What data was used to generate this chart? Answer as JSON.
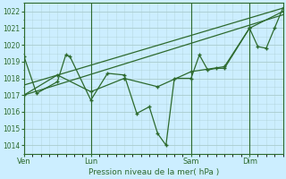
{
  "xlabel": "Pression niveau de la mer( hPa )",
  "bg_color": "#cceeff",
  "line_color": "#2d6a2d",
  "grid_color": "#aacccc",
  "ylim": [
    1013.5,
    1022.5
  ],
  "yticks": [
    1014,
    1015,
    1016,
    1017,
    1018,
    1019,
    1020,
    1021,
    1022
  ],
  "day_labels": [
    "Ven",
    "Lun",
    "Sam",
    "Dim"
  ],
  "day_positions": [
    0,
    8,
    20,
    27
  ],
  "xlim": [
    0,
    31
  ],
  "series1_x": [
    0,
    1.5,
    4,
    5,
    5.5,
    8,
    10,
    12,
    13.5,
    15,
    16,
    17,
    18,
    20,
    21,
    22,
    23,
    24,
    27,
    28,
    29,
    30,
    31
  ],
  "series1_y": [
    1019.3,
    1017.1,
    1017.8,
    1019.4,
    1019.3,
    1016.7,
    1018.3,
    1018.2,
    1015.9,
    1016.3,
    1014.7,
    1014.0,
    1018.0,
    1018.0,
    1019.4,
    1018.5,
    1018.6,
    1018.6,
    1021.0,
    1019.9,
    1019.8,
    1021.0,
    1022.2
  ],
  "series2_x": [
    0,
    4,
    8,
    12,
    16,
    20,
    24,
    27,
    31
  ],
  "series2_y": [
    1017.0,
    1018.2,
    1017.2,
    1018.0,
    1017.5,
    1018.4,
    1018.7,
    1021.0,
    1022.0
  ],
  "trend1_x": [
    0,
    31
  ],
  "trend1_y": [
    1017.0,
    1021.8
  ],
  "trend2_x": [
    0,
    31
  ],
  "trend2_y": [
    1017.6,
    1022.2
  ],
  "figsize": [
    3.2,
    2.0
  ],
  "dpi": 100
}
